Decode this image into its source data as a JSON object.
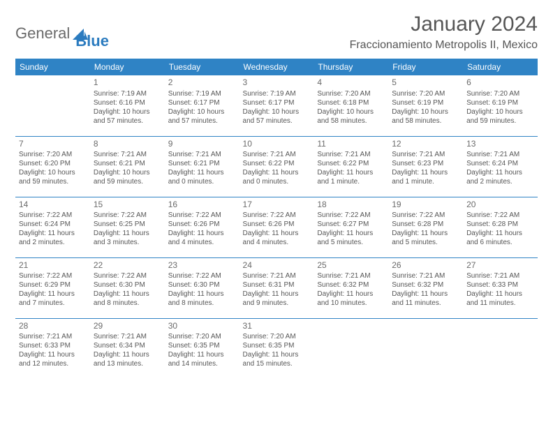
{
  "brand": {
    "name1": "General",
    "name2": "Blue"
  },
  "title": "January 2024",
  "location": "Fraccionamiento Metropolis II, Mexico",
  "colors": {
    "header_bg": "#2f83c5",
    "header_fg": "#ffffff",
    "rule": "#2f83c5",
    "text": "#565656",
    "title": "#555555"
  },
  "daynames": [
    "Sunday",
    "Monday",
    "Tuesday",
    "Wednesday",
    "Thursday",
    "Friday",
    "Saturday"
  ],
  "weeks": [
    [
      null,
      {
        "n": "1",
        "sr": "Sunrise: 7:19 AM",
        "ss": "Sunset: 6:16 PM",
        "dl": "Daylight: 10 hours and 57 minutes."
      },
      {
        "n": "2",
        "sr": "Sunrise: 7:19 AM",
        "ss": "Sunset: 6:17 PM",
        "dl": "Daylight: 10 hours and 57 minutes."
      },
      {
        "n": "3",
        "sr": "Sunrise: 7:19 AM",
        "ss": "Sunset: 6:17 PM",
        "dl": "Daylight: 10 hours and 57 minutes."
      },
      {
        "n": "4",
        "sr": "Sunrise: 7:20 AM",
        "ss": "Sunset: 6:18 PM",
        "dl": "Daylight: 10 hours and 58 minutes."
      },
      {
        "n": "5",
        "sr": "Sunrise: 7:20 AM",
        "ss": "Sunset: 6:19 PM",
        "dl": "Daylight: 10 hours and 58 minutes."
      },
      {
        "n": "6",
        "sr": "Sunrise: 7:20 AM",
        "ss": "Sunset: 6:19 PM",
        "dl": "Daylight: 10 hours and 59 minutes."
      }
    ],
    [
      {
        "n": "7",
        "sr": "Sunrise: 7:20 AM",
        "ss": "Sunset: 6:20 PM",
        "dl": "Daylight: 10 hours and 59 minutes."
      },
      {
        "n": "8",
        "sr": "Sunrise: 7:21 AM",
        "ss": "Sunset: 6:21 PM",
        "dl": "Daylight: 10 hours and 59 minutes."
      },
      {
        "n": "9",
        "sr": "Sunrise: 7:21 AM",
        "ss": "Sunset: 6:21 PM",
        "dl": "Daylight: 11 hours and 0 minutes."
      },
      {
        "n": "10",
        "sr": "Sunrise: 7:21 AM",
        "ss": "Sunset: 6:22 PM",
        "dl": "Daylight: 11 hours and 0 minutes."
      },
      {
        "n": "11",
        "sr": "Sunrise: 7:21 AM",
        "ss": "Sunset: 6:22 PM",
        "dl": "Daylight: 11 hours and 1 minute."
      },
      {
        "n": "12",
        "sr": "Sunrise: 7:21 AM",
        "ss": "Sunset: 6:23 PM",
        "dl": "Daylight: 11 hours and 1 minute."
      },
      {
        "n": "13",
        "sr": "Sunrise: 7:21 AM",
        "ss": "Sunset: 6:24 PM",
        "dl": "Daylight: 11 hours and 2 minutes."
      }
    ],
    [
      {
        "n": "14",
        "sr": "Sunrise: 7:22 AM",
        "ss": "Sunset: 6:24 PM",
        "dl": "Daylight: 11 hours and 2 minutes."
      },
      {
        "n": "15",
        "sr": "Sunrise: 7:22 AM",
        "ss": "Sunset: 6:25 PM",
        "dl": "Daylight: 11 hours and 3 minutes."
      },
      {
        "n": "16",
        "sr": "Sunrise: 7:22 AM",
        "ss": "Sunset: 6:26 PM",
        "dl": "Daylight: 11 hours and 4 minutes."
      },
      {
        "n": "17",
        "sr": "Sunrise: 7:22 AM",
        "ss": "Sunset: 6:26 PM",
        "dl": "Daylight: 11 hours and 4 minutes."
      },
      {
        "n": "18",
        "sr": "Sunrise: 7:22 AM",
        "ss": "Sunset: 6:27 PM",
        "dl": "Daylight: 11 hours and 5 minutes."
      },
      {
        "n": "19",
        "sr": "Sunrise: 7:22 AM",
        "ss": "Sunset: 6:28 PM",
        "dl": "Daylight: 11 hours and 5 minutes."
      },
      {
        "n": "20",
        "sr": "Sunrise: 7:22 AM",
        "ss": "Sunset: 6:28 PM",
        "dl": "Daylight: 11 hours and 6 minutes."
      }
    ],
    [
      {
        "n": "21",
        "sr": "Sunrise: 7:22 AM",
        "ss": "Sunset: 6:29 PM",
        "dl": "Daylight: 11 hours and 7 minutes."
      },
      {
        "n": "22",
        "sr": "Sunrise: 7:22 AM",
        "ss": "Sunset: 6:30 PM",
        "dl": "Daylight: 11 hours and 8 minutes."
      },
      {
        "n": "23",
        "sr": "Sunrise: 7:22 AM",
        "ss": "Sunset: 6:30 PM",
        "dl": "Daylight: 11 hours and 8 minutes."
      },
      {
        "n": "24",
        "sr": "Sunrise: 7:21 AM",
        "ss": "Sunset: 6:31 PM",
        "dl": "Daylight: 11 hours and 9 minutes."
      },
      {
        "n": "25",
        "sr": "Sunrise: 7:21 AM",
        "ss": "Sunset: 6:32 PM",
        "dl": "Daylight: 11 hours and 10 minutes."
      },
      {
        "n": "26",
        "sr": "Sunrise: 7:21 AM",
        "ss": "Sunset: 6:32 PM",
        "dl": "Daylight: 11 hours and 11 minutes."
      },
      {
        "n": "27",
        "sr": "Sunrise: 7:21 AM",
        "ss": "Sunset: 6:33 PM",
        "dl": "Daylight: 11 hours and 11 minutes."
      }
    ],
    [
      {
        "n": "28",
        "sr": "Sunrise: 7:21 AM",
        "ss": "Sunset: 6:33 PM",
        "dl": "Daylight: 11 hours and 12 minutes."
      },
      {
        "n": "29",
        "sr": "Sunrise: 7:21 AM",
        "ss": "Sunset: 6:34 PM",
        "dl": "Daylight: 11 hours and 13 minutes."
      },
      {
        "n": "30",
        "sr": "Sunrise: 7:20 AM",
        "ss": "Sunset: 6:35 PM",
        "dl": "Daylight: 11 hours and 14 minutes."
      },
      {
        "n": "31",
        "sr": "Sunrise: 7:20 AM",
        "ss": "Sunset: 6:35 PM",
        "dl": "Daylight: 11 hours and 15 minutes."
      },
      null,
      null,
      null
    ]
  ]
}
